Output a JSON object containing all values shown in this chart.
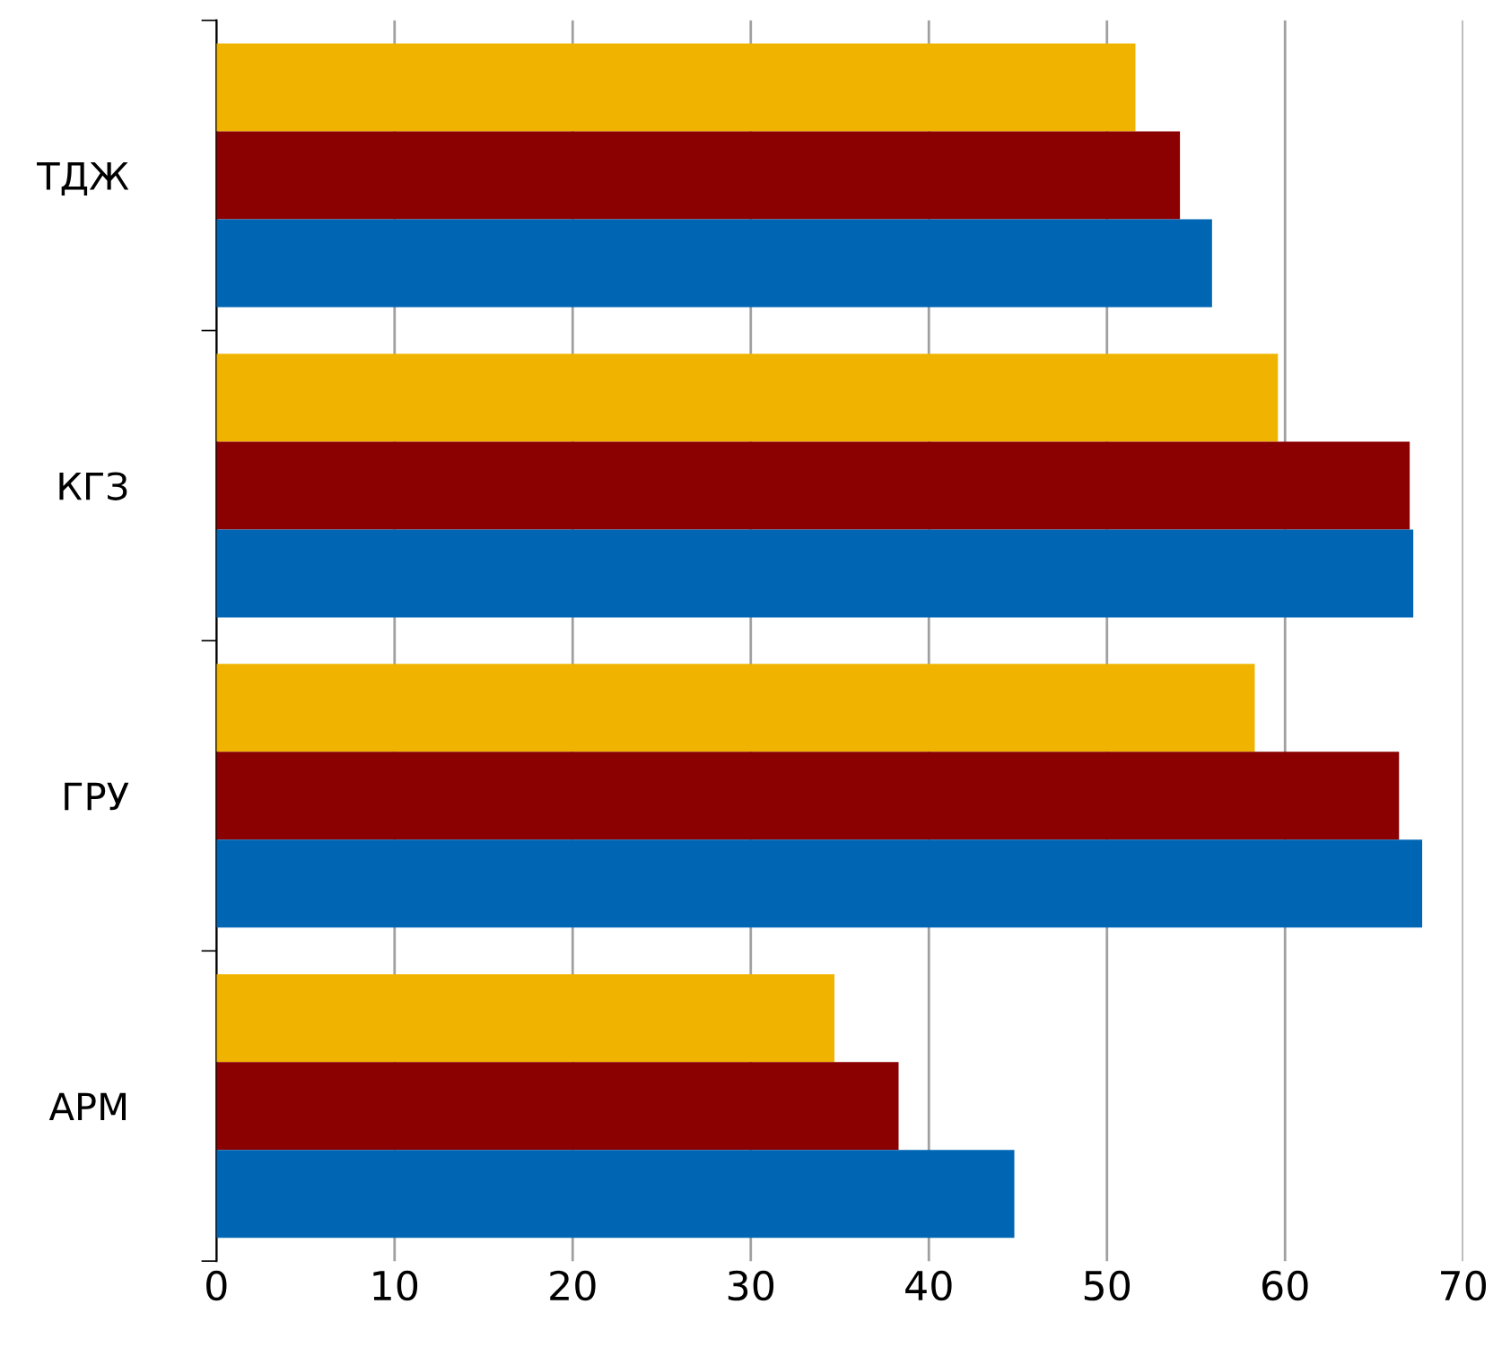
{
  "chart_data": {
    "type": "bar",
    "orientation": "horizontal",
    "categories": [
      "ТДЖ",
      "КГЗ",
      "ГРУ",
      "АРМ"
    ],
    "series": [
      {
        "color": "#f0b400",
        "values": [
          51.6,
          59.6,
          58.3,
          34.7
        ]
      },
      {
        "color": "#8b0000",
        "values": [
          54.1,
          67.0,
          66.4,
          38.3
        ]
      },
      {
        "color": "#0066b3",
        "values": [
          55.9,
          67.2,
          67.7,
          44.8
        ]
      }
    ],
    "xlim": [
      0,
      70
    ],
    "xticks": [
      0,
      10,
      20,
      30,
      40,
      50,
      60,
      70
    ],
    "grid": "x",
    "legend": false
  }
}
